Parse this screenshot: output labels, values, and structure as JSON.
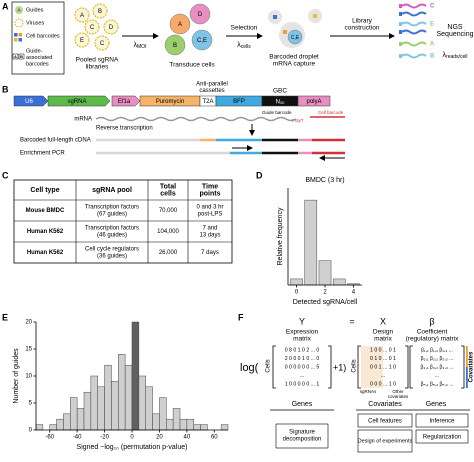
{
  "panel_labels": [
    "A",
    "B",
    "C",
    "D",
    "E",
    "F"
  ],
  "panel_a": {
    "legend": {
      "guides": "Guides",
      "viruses": "Viruses",
      "cell_barcodes": "Cell barcodes",
      "guide_barcodes": [
        "Guide-",
        "associated",
        "barcodes"
      ]
    },
    "letters": [
      "A",
      "B",
      "C",
      "D",
      "E",
      "C,E"
    ],
    "libraries": [
      "Pooled sgRNA",
      "libraries"
    ],
    "lambda": "λ",
    "moi": "MOI",
    "transduce": "Transduce cells",
    "selection": "Selection",
    "cells": "cells",
    "capture": [
      "Barcoded droplet",
      "mRNA capture"
    ],
    "library": [
      "Library",
      "construction"
    ],
    "sequencing": [
      "NGS",
      "Sequencing"
    ],
    "reads": "reads/cell"
  },
  "panel_b": {
    "construct": {
      "u6": "U6",
      "sgrna": "sgRNA",
      "ef1a": "Ef1a",
      "puro": "Puromycin",
      "t2a": "T2A",
      "bfp": "BFP",
      "n": "N",
      "n_sub": "20",
      "polya": "polyA"
    },
    "cassettes": [
      "Anti-parallel",
      "cassettes"
    ],
    "gbc": "GBC",
    "guide_barcode": "Guide barcode",
    "cell_barcode": "Cell barcode",
    "polyt": "PolyT",
    "mrna": "mRNA",
    "rt": "Reverse transcription",
    "cdna": "Barcoded full-length cDNA",
    "pcr": "Enrichment PCR"
  },
  "table": {
    "header": [
      [
        "Cell type"
      ],
      [
        "sgRNA pool"
      ],
      [
        "Total",
        "cells"
      ],
      [
        "Time",
        "points"
      ]
    ],
    "rows": [
      [
        [
          "Mouse BMDC"
        ],
        [
          "Transcription factors",
          "(67 guides)"
        ],
        [
          "70,000"
        ],
        [
          "0 and 3 hr",
          "post-LPS"
        ]
      ],
      [
        [
          "Human K562"
        ],
        [
          "Transcription factors",
          "(46 guides)"
        ],
        [
          "104,000"
        ],
        [
          "7 and",
          "13 days"
        ]
      ],
      [
        [
          "Human K562"
        ],
        [
          "Cell cycle regulators",
          "(36 guides)"
        ],
        [
          "26,000"
        ],
        [
          "7 days"
        ]
      ]
    ]
  },
  "chart_data": [
    {
      "type": "bar",
      "title": "BMDC (3 hr)",
      "x": [
        0,
        1,
        2,
        3,
        4
      ],
      "values": [
        0.05,
        0.7,
        0.2,
        0.05,
        0.01
      ],
      "color": "#cfcfcf",
      "xlim": [
        -0.6,
        4.6
      ],
      "xticks": [
        0,
        2,
        4
      ],
      "ylim": [
        0,
        0.8
      ],
      "xlabel": "Detected sgRNA/cell",
      "ylabel": "Relative frequency"
    },
    {
      "type": "histogram",
      "bins": [
        -70,
        -65,
        -60,
        -55,
        -50,
        -45,
        -40,
        -35,
        -30,
        -25,
        -20,
        -15,
        -10,
        -5,
        0,
        5,
        10,
        15,
        20,
        25,
        30,
        35,
        40,
        45,
        50,
        55,
        60,
        65,
        70
      ],
      "values": [
        1,
        0,
        1,
        2,
        3,
        6,
        4,
        7,
        10,
        8,
        12,
        9,
        14,
        12,
        20,
        10,
        8,
        3,
        6,
        2,
        4,
        2,
        2,
        1,
        1,
        0,
        0,
        1
      ],
      "color": "#cfcfcf",
      "highlight_bin": 14,
      "highlight_color": "#606060",
      "xlim": [
        -70,
        70
      ],
      "xticks": [
        -60,
        -40,
        -20,
        0,
        20,
        40,
        60
      ],
      "ylim": [
        0,
        20
      ],
      "yticks": [
        0,
        5,
        10,
        15,
        20
      ],
      "xlabel": "Signed −log₁₀ (permutation p-value)",
      "ylabel": "Number of guides"
    }
  ],
  "panel_f": {
    "y": "Y",
    "eq": "=",
    "x": "X",
    "beta": "β",
    "y_title": [
      "Expression",
      "matrix"
    ],
    "x_title": [
      "Design",
      "matrix"
    ],
    "b_title": [
      "Coefficient",
      "(regulatory) matrix"
    ],
    "log": "log(",
    "plus": "+1)",
    "cells": "Cells",
    "y_rows": [
      "0 8 0 1 0 2 ... 0",
      "2 0 0 0 1 0 ... 0",
      "0 0 0 0 0 0 ... 5",
      "...",
      "1 0 0 0 0 0 ... 1"
    ],
    "x_rows": [
      "1 0 0 ... 0 1",
      "0 1 0 ... 0 1",
      "0 0 1 ... 1 0",
      "...",
      "0 0 0 ... 1 0"
    ],
    "b_rows": [
      "β₁,₁ β₁,₂ β₁,₃ ...",
      "β₂,₁ β₂,₂ β₂,₃ ...",
      "β₃,₁ β₃,₂ β₃,₃ ...",
      "...",
      "βₙ,₁ βₙ,₂ βₙ,₃ ..."
    ],
    "sgrnas": "sgRNAs",
    "other": [
      "Other",
      "covariates"
    ],
    "covariates": "Covariates",
    "genes": "Genes",
    "box_genes": [
      "Signature",
      "decomposition"
    ],
    "box_covariates": [
      "Cell features",
      "Design of experiments"
    ],
    "box_genes2": [
      "Inference",
      "Regularization"
    ]
  }
}
